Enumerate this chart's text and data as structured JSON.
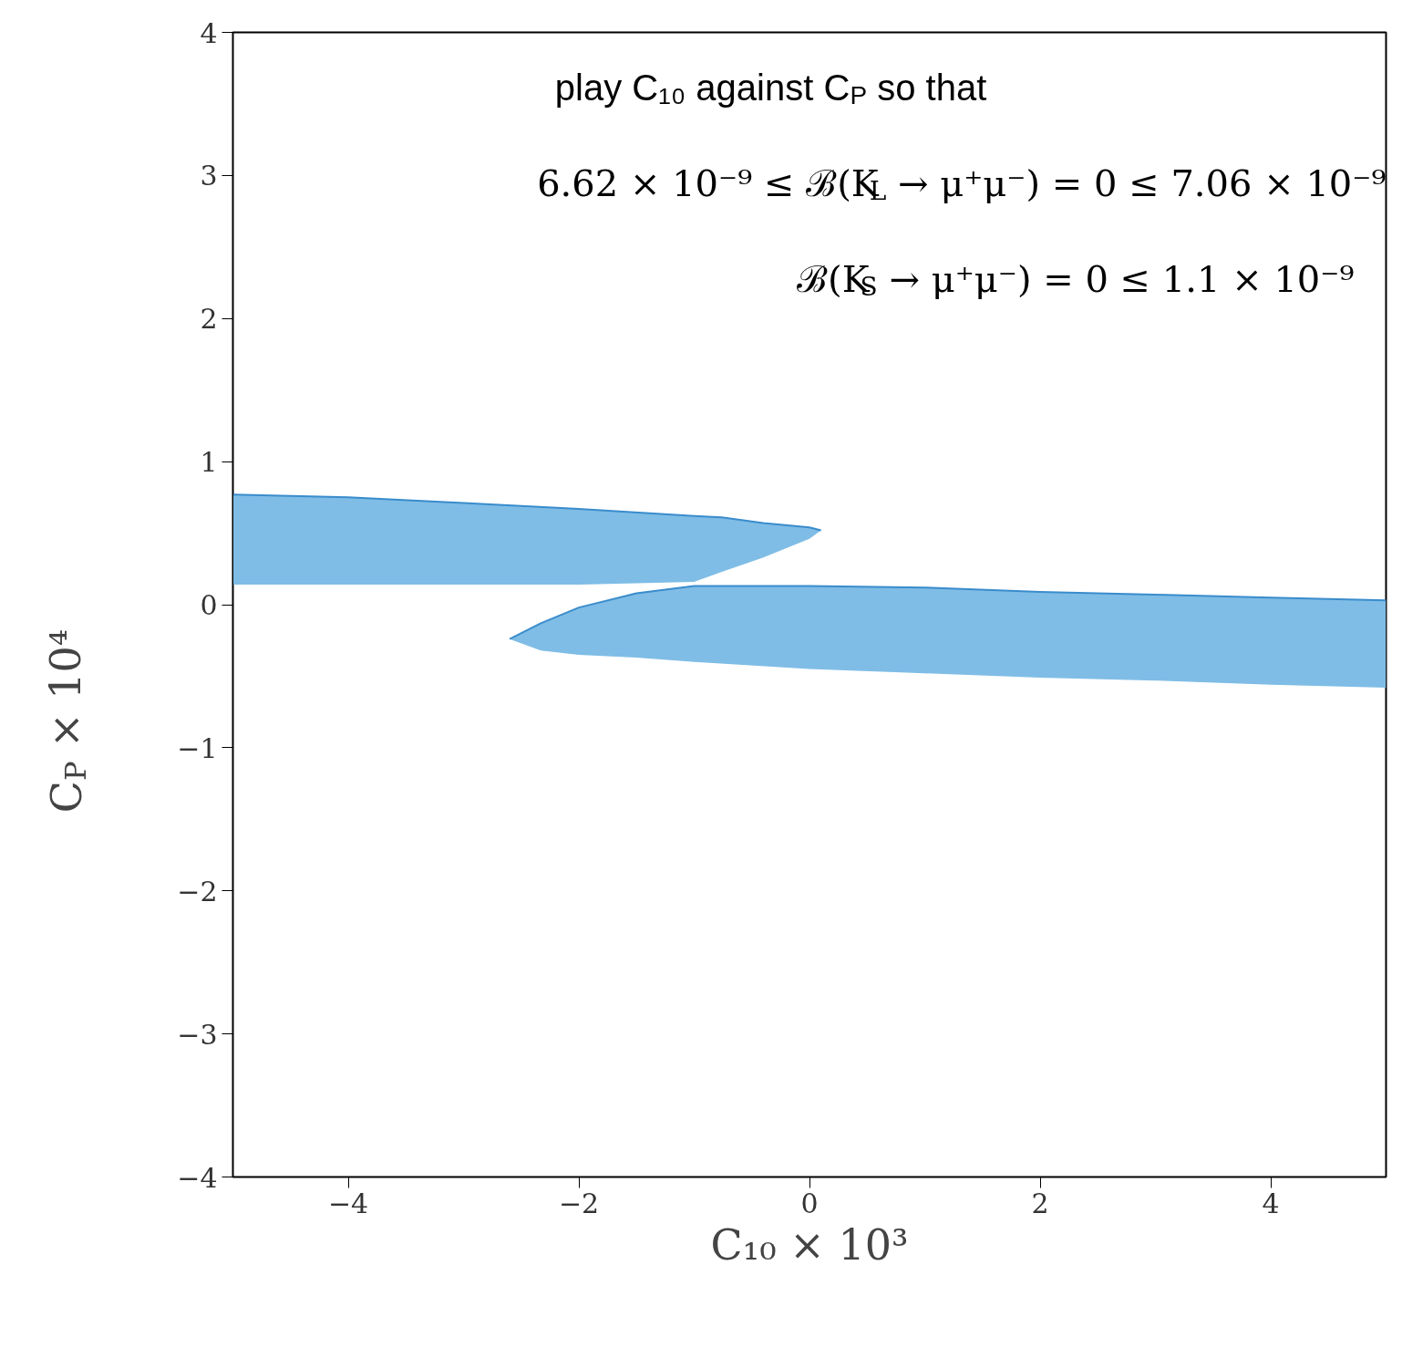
{
  "chart_data": {
    "type": "line",
    "xlabel": "C₁₀ × 10³",
    "ylabel": "C$_{P}$ × 10⁴",
    "xlim": [
      -5,
      5
    ],
    "ylim": [
      -4,
      4
    ],
    "xticks": [
      -4,
      -2,
      0,
      2,
      4
    ],
    "yticks": [
      -4,
      -3,
      -2,
      -1,
      0,
      1,
      2,
      3,
      4
    ],
    "grid": false,
    "legend": false,
    "marker": "none",
    "annotations": [
      "play C₁₀ against C$_{P}$ so that",
      "6.62 × 10⁻⁹ ≤ ℬ(K$_{L}$ → μ⁺μ⁻) = 0 ≤ 7.06 × 10⁻⁹",
      "ℬ(K$_{S}$ → μ⁺μ⁻) = 0 ≤ 1.1 × 10⁻⁹"
    ],
    "series": [
      {
        "color": "#3a8ccc",
        "x": [
          -5,
          -4,
          -3,
          -2,
          -1,
          -0.76,
          -0.4,
          0,
          0.1
        ],
        "values": [
          0.77,
          0.75,
          0.71,
          0.67,
          0.62,
          0.61,
          0.57,
          0.54,
          0.52
        ],
        "upper": [
          0.77,
          0.75,
          0.71,
          0.67,
          0.62,
          0.61,
          0.57,
          0.54,
          0.52
        ],
        "lower": [
          0.14,
          0.14,
          0.14,
          0.14,
          0.16,
          0.23,
          0.33,
          0.46,
          0.52
        ]
      },
      {
        "color": "#3a8ccc",
        "x": [
          -2.6,
          -2.33,
          -2,
          -1.5,
          -1,
          0,
          1,
          2,
          3,
          4,
          5
        ],
        "values": [
          -0.24,
          -0.13,
          -0.02,
          0.08,
          0.13,
          0.13,
          0.12,
          0.09,
          0.07,
          0.05,
          0.03
        ],
        "upper": [
          -0.24,
          -0.13,
          -0.02,
          0.08,
          0.13,
          0.13,
          0.12,
          0.09,
          0.07,
          0.05,
          0.03
        ],
        "lower": [
          -0.24,
          -0.32,
          -0.35,
          -0.37,
          -0.4,
          -0.45,
          -0.48,
          -0.51,
          -0.53,
          -0.56,
          -0.58
        ]
      }
    ]
  }
}
